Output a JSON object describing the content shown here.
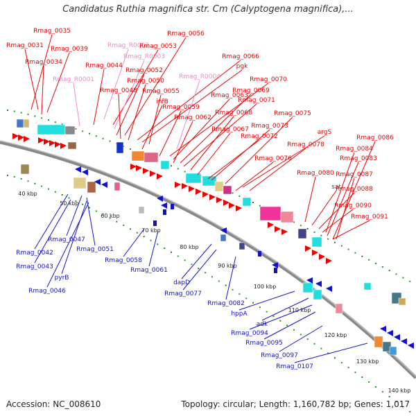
{
  "title": "Candidatus Ruthia magnifica str. Cm (Calyptogena magnifica),...",
  "footer": {
    "accession": "Accession: NC_008610",
    "genome_info": "Topology: circular; Length: 1,160,782 bp; Genes: 1,017"
  },
  "colors": {
    "forward": "#ee0000",
    "reverse": "#1111cc",
    "rna": "#ee88cc",
    "backbone": "#888888"
  },
  "ticks": [
    "40 kbp",
    "50 kbp",
    "60 kbp",
    "70 kbp",
    "80 kbp",
    "90 kbp",
    "100 kbp",
    "110 kbp",
    "120 kbp",
    "130 kbp",
    "140 kbp"
  ],
  "forward_labels": [
    "Rmag_0035",
    "Rmag_0031",
    "Rmag_0039",
    "Rmag_0034",
    "Rmag_R0002",
    "Rmag_0053",
    "Rmag_0056",
    "Rmag_R0003",
    "Rmag_0044",
    "Rmag_0052",
    "Rmag_0066",
    "Rmag_R0001",
    "Rmag_0050",
    "pgk",
    "Rmag_R0004",
    "Rmag_0048",
    "Rmag_0055",
    "Rmag_0070",
    "infB",
    "Rmag_0063",
    "Rmag_0069",
    "Rmag_0071",
    "Rmag_0059",
    "Rmag_0068",
    "Rmag_0075",
    "Rmag_0062",
    "Rmag_0067",
    "Rmag_0073",
    "argS",
    "Rmag_0086",
    "Rmag_0072",
    "Rmag_0078",
    "Rmag_0084",
    "Rmag_0083",
    "Rmag_0076",
    "Rmag_0080",
    "Rmag_0087",
    "sat",
    "Rmag_0088",
    "Rmag_0090",
    "Rmag_0091"
  ],
  "reverse_labels": [
    "Rmag_0042",
    "Rmag_0047",
    "Rmag_0051",
    "Rmag_0043",
    "pyrB",
    "Rmag_0046",
    "Rmag_0058",
    "Rmag_0061",
    "dapD",
    "Rmag_0077",
    "Rmag_0082",
    "hppA",
    "adk",
    "Rmag_0094",
    "Rmag_0095",
    "Rmag_0097",
    "Rmag_0107"
  ]
}
